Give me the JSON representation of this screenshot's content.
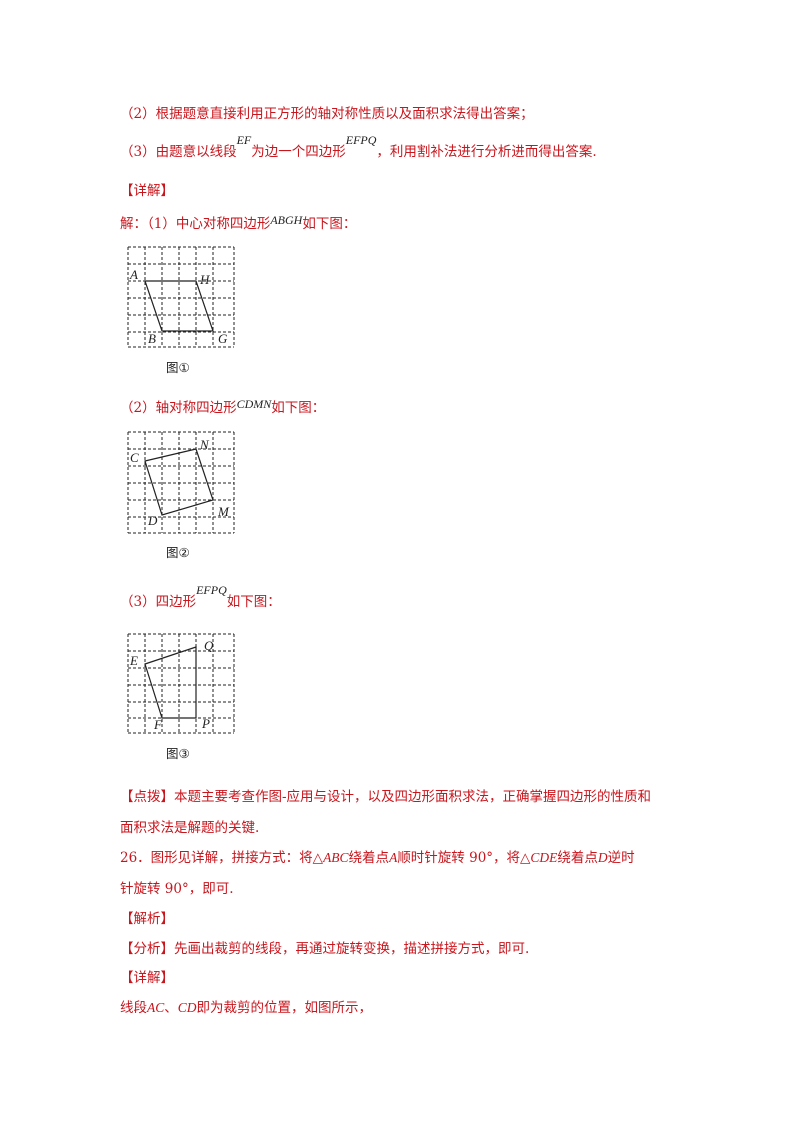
{
  "analysis": {
    "line2": "（2）根据题意直接利用正方形的轴对称性质以及面积求法得出答案；",
    "line3_a": "（3）由题意以线段",
    "line3_math1": "EF",
    "line3_b": "为边一个四边形",
    "line3_math2": "EFPQ",
    "line3_c": "，利用割补法进行分析进而得出答案."
  },
  "detail1": {
    "heading": "【详解】",
    "intro_a": "解：（1）中心对称四边形",
    "intro_math": "ABGH",
    "intro_b": "如下图："
  },
  "figure1": {
    "labels": [
      "A",
      "H",
      "B",
      "G"
    ],
    "caption": "图①"
  },
  "part2": {
    "text_a": "（2）轴对称四边形",
    "text_math": "CDMN",
    "text_b": "如下图："
  },
  "figure2": {
    "labels": [
      "C",
      "N",
      "D",
      "M"
    ],
    "caption": "图②"
  },
  "part3": {
    "text_a": "（3）四边形",
    "text_math": "EFPQ",
    "text_b": "如下图："
  },
  "figure3": {
    "labels": [
      "E",
      "Q",
      "F",
      "P"
    ],
    "caption": "图③"
  },
  "tip": {
    "line1": "【点拨】本题主要考查作图-应用与设计，以及四边形面积求法，正确掌握四边形的性质和",
    "line2": "面积求法是解题的关键."
  },
  "q26": {
    "line1_a": "26．图形见详解，拼接方式：将△",
    "line1_m1": "ABC",
    "line1_b": "绕着点",
    "line1_m2": "A",
    "line1_c": "顺时针旋转 90°，将△",
    "line1_m3": "CDE",
    "line1_d": "绕着点",
    "line1_m4": "D",
    "line1_e": "逆时",
    "line2": "针旋转 90°，即可."
  },
  "analysis2": {
    "heading": "【解析】",
    "fenxi": "【分析】先画出裁剪的线段，再通过旋转变换，描述拼接方式，即可."
  },
  "detail2": {
    "heading": "【详解】",
    "text_a": "线段",
    "m1": "AC",
    "sep": "、",
    "m2": "CD",
    "text_b": "即为裁剪的位置，如图所示，"
  }
}
